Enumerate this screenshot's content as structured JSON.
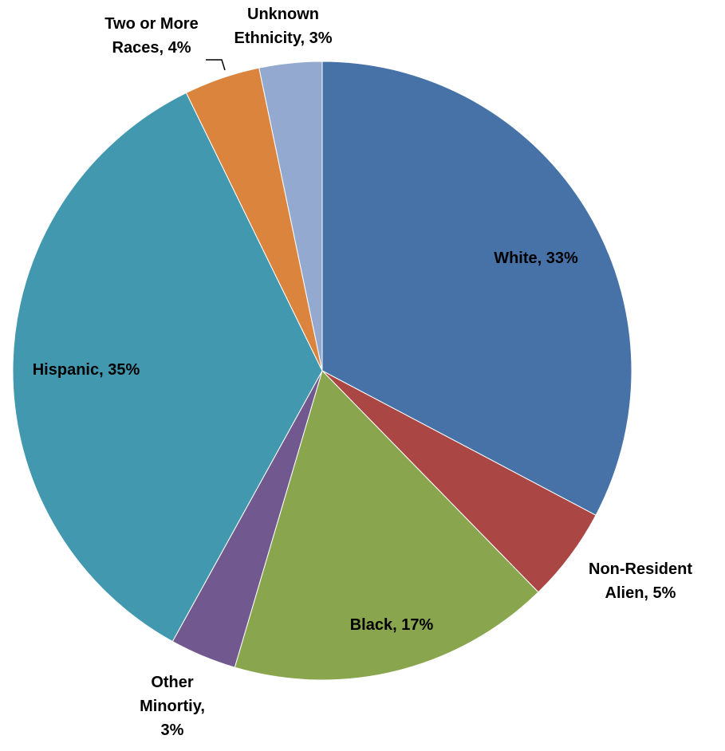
{
  "chart_data": {
    "type": "pie",
    "title": "",
    "start_angle_deg": 0,
    "direction": "clockwise",
    "slices": [
      {
        "name": "White",
        "value": 33,
        "color": "#4672A8",
        "label_lines": [
          "White, 33%"
        ]
      },
      {
        "name": "Non-Resident Alien",
        "value": 5,
        "color": "#AA4643",
        "label_lines": [
          "Non-Resident",
          "Alien, 5%"
        ]
      },
      {
        "name": "Black",
        "value": 17,
        "color": "#89A54E",
        "label_lines": [
          "Black, 17%"
        ]
      },
      {
        "name": "Other Minortiy",
        "value": 3.5,
        "color": "#71588F",
        "label_lines": [
          "Other",
          "Minortiy,",
          "3%"
        ]
      },
      {
        "name": "Hispanic",
        "value": 35,
        "color": "#4198AF",
        "label_lines": [
          "Hispanic, 35%"
        ]
      },
      {
        "name": "Two or More Races",
        "value": 4,
        "color": "#DB843D",
        "label_lines": [
          "Two or More",
          "Races, 4%"
        ]
      },
      {
        "name": "Unknown Ethnicity",
        "value": 3.3,
        "color": "#93A9CF",
        "label_lines": [
          "Unknown",
          "Ethnicity, 3%"
        ]
      }
    ],
    "legend": "none"
  }
}
